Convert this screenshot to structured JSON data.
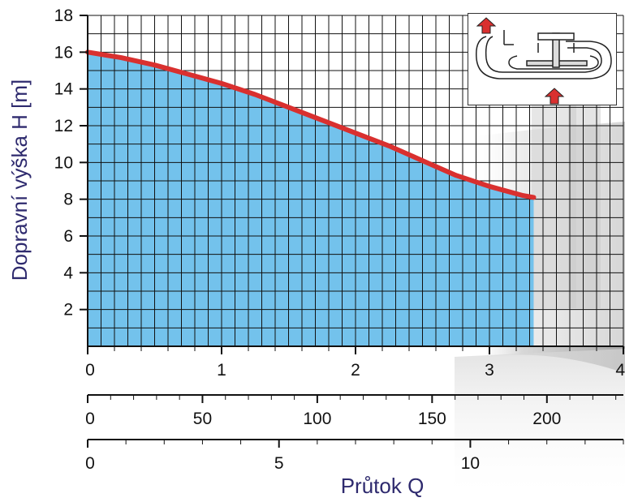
{
  "chart_data": {
    "type": "area",
    "title": "",
    "ylabel": "Dopravní výška H [m]",
    "xlabel": "Průtok Q",
    "ylim": [
      0,
      18
    ],
    "y_ticks": [
      "2",
      "4",
      "6",
      "8",
      "10",
      "12",
      "14",
      "16",
      "18"
    ],
    "x_axes": [
      {
        "min": 0,
        "max": 4,
        "ticks": [
          0,
          1,
          2,
          3,
          4
        ],
        "tick_labels": [
          "0",
          "1",
          "2",
          "3",
          "4"
        ]
      },
      {
        "min": 0,
        "max": 233.3,
        "ticks": [
          0,
          50,
          100,
          150,
          200
        ],
        "tick_labels": [
          "0",
          "50",
          "100",
          "150",
          "200"
        ]
      },
      {
        "min": 0,
        "max": 14.0,
        "ticks": [
          0,
          5,
          10
        ],
        "tick_labels": [
          "0",
          "5",
          "10"
        ]
      }
    ],
    "series": [
      {
        "x": [
          0,
          0.25,
          0.5,
          0.75,
          1.0,
          1.25,
          1.5,
          1.75,
          2.0,
          2.25,
          2.5,
          2.75,
          3.0,
          3.25,
          3.33
        ],
        "values": [
          16.0,
          15.7,
          15.3,
          14.8,
          14.3,
          13.7,
          13.0,
          12.3,
          11.6,
          10.9,
          10.1,
          9.3,
          8.7,
          8.2,
          8.1
        ]
      }
    ],
    "grid": true,
    "colors": {
      "fill": "#73c2ec",
      "curve": "#d9302f",
      "grid": "#111111",
      "axis_title": "#2e2a6e",
      "arrow": "#d9302f"
    }
  }
}
